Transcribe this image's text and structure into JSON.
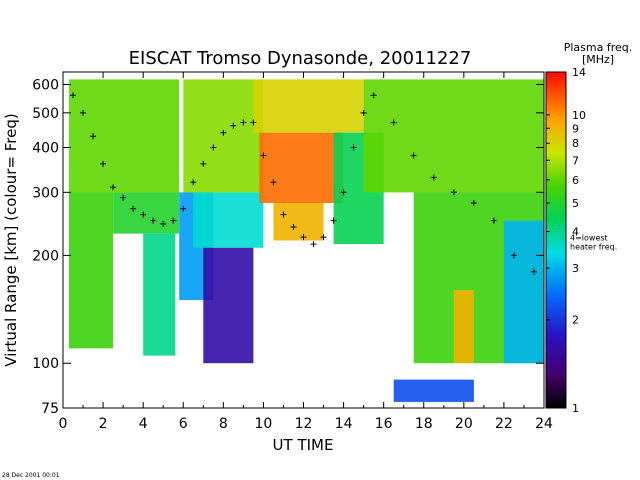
{
  "chart_data": {
    "type": "heatmap",
    "title": "EISCAT Tromso Dynasonde,  20011227",
    "xlabel": "UT TIME",
    "ylabel": "Virtual Range [km]   (colour= Freq)",
    "x_range": [
      0,
      24
    ],
    "x_ticks": [
      0,
      2,
      4,
      6,
      8,
      10,
      12,
      14,
      16,
      18,
      20,
      22,
      24
    ],
    "y_scale": "log",
    "y_range": [
      75,
      650
    ],
    "y_ticks": [
      75,
      100,
      200,
      300,
      400,
      500,
      600
    ],
    "colorbar": {
      "title_line1": "Plasma freq.",
      "title_line2": "[MHz]",
      "scale": "log",
      "range": [
        1,
        14
      ],
      "ticks": [
        1,
        2,
        3,
        4,
        5,
        6,
        7,
        8,
        9,
        10,
        14
      ],
      "annotation_line1": "4=lowest",
      "annotation_line2": "heater freq."
    },
    "regions": [
      {
        "x": [
          0.3,
          5.8
        ],
        "y": [
          300,
          620
        ],
        "freq": 6.0
      },
      {
        "x": [
          0.3,
          2.5
        ],
        "y": [
          110,
          300
        ],
        "freq": 5.5
      },
      {
        "x": [
          2.5,
          5.8
        ],
        "y": [
          230,
          300
        ],
        "freq": 5.0
      },
      {
        "x": [
          4.0,
          5.6
        ],
        "y": [
          105,
          230
        ],
        "freq": 4.0
      },
      {
        "x": [
          5.8,
          7.5
        ],
        "y": [
          150,
          300
        ],
        "freq": 2.8
      },
      {
        "x": [
          6.5,
          10.0
        ],
        "y": [
          210,
          300
        ],
        "freq": 3.5
      },
      {
        "x": [
          6.0,
          10.0
        ],
        "y": [
          300,
          620
        ],
        "freq": 6.5
      },
      {
        "x": [
          7.0,
          9.5
        ],
        "y": [
          100,
          210
        ],
        "freq": 1.6
      },
      {
        "x": [
          9.5,
          15.0
        ],
        "y": [
          440,
          620
        ],
        "freq": 8.0
      },
      {
        "x": [
          9.8,
          14.0
        ],
        "y": [
          280,
          440
        ],
        "freq": 11.0
      },
      {
        "x": [
          10.5,
          13.0
        ],
        "y": [
          220,
          280
        ],
        "freq": 9.0
      },
      {
        "x": [
          13.5,
          16.0
        ],
        "y": [
          215,
          440
        ],
        "freq": 4.5
      },
      {
        "x": [
          15.0,
          24.0
        ],
        "y": [
          300,
          620
        ],
        "freq": 6.0
      },
      {
        "x": [
          17.5,
          24.0
        ],
        "y": [
          100,
          300
        ],
        "freq": 5.5
      },
      {
        "x": [
          19.5,
          20.5
        ],
        "y": [
          100,
          160
        ],
        "freq": 9.0
      },
      {
        "x": [
          22.0,
          24.0
        ],
        "y": [
          100,
          250
        ],
        "freq": 3.0
      },
      {
        "x": [
          16.5,
          20.5
        ],
        "y": [
          78,
          90
        ],
        "freq": 2.2
      }
    ],
    "trace_points": [
      {
        "x": 0.5,
        "y": 560
      },
      {
        "x": 1.0,
        "y": 500
      },
      {
        "x": 1.5,
        "y": 430
      },
      {
        "x": 2.0,
        "y": 360
      },
      {
        "x": 2.5,
        "y": 310
      },
      {
        "x": 3.0,
        "y": 290
      },
      {
        "x": 3.5,
        "y": 270
      },
      {
        "x": 4.0,
        "y": 260
      },
      {
        "x": 4.5,
        "y": 250
      },
      {
        "x": 5.0,
        "y": 245
      },
      {
        "x": 5.5,
        "y": 250
      },
      {
        "x": 6.0,
        "y": 270
      },
      {
        "x": 6.5,
        "y": 320
      },
      {
        "x": 7.0,
        "y": 360
      },
      {
        "x": 7.5,
        "y": 400
      },
      {
        "x": 8.0,
        "y": 440
      },
      {
        "x": 8.5,
        "y": 460
      },
      {
        "x": 9.0,
        "y": 470
      },
      {
        "x": 9.5,
        "y": 470
      },
      {
        "x": 10.0,
        "y": 380
      },
      {
        "x": 10.5,
        "y": 320
      },
      {
        "x": 11.0,
        "y": 260
      },
      {
        "x": 11.5,
        "y": 240
      },
      {
        "x": 12.0,
        "y": 225
      },
      {
        "x": 12.5,
        "y": 215
      },
      {
        "x": 13.0,
        "y": 225
      },
      {
        "x": 13.5,
        "y": 250
      },
      {
        "x": 14.0,
        "y": 300
      },
      {
        "x": 14.5,
        "y": 400
      },
      {
        "x": 15.0,
        "y": 500
      },
      {
        "x": 15.5,
        "y": 560
      },
      {
        "x": 16.5,
        "y": 470
      },
      {
        "x": 17.5,
        "y": 380
      },
      {
        "x": 18.5,
        "y": 330
      },
      {
        "x": 19.5,
        "y": 300
      },
      {
        "x": 20.5,
        "y": 280
      },
      {
        "x": 21.5,
        "y": 250
      },
      {
        "x": 22.5,
        "y": 200
      },
      {
        "x": 23.5,
        "y": 180
      }
    ]
  },
  "footer": {
    "timestamp": "28 Dec 2001 00:01"
  }
}
